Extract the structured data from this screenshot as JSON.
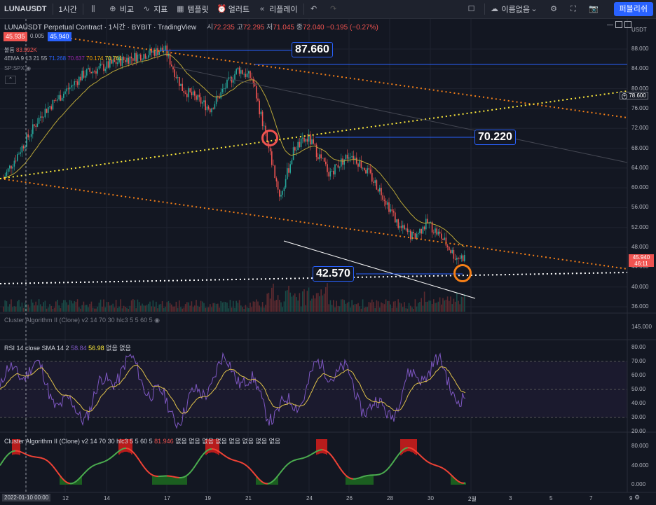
{
  "toolbar": {
    "symbol": "LUNAUSDT",
    "interval": "1시간",
    "compare": "비교",
    "indicators": "지표",
    "templates": "템플릿",
    "alert": "얼러트",
    "replay": "리플레이",
    "layout_name": "이름없음",
    "publish": "퍼블리쉬"
  },
  "legend": {
    "title": "LUNAUSDT Perpetual Contract · 1시간 · BYBIT · TradingView",
    "o_label": "시",
    "o": "72.235",
    "h_label": "고",
    "h": "72.295",
    "l_label": "저",
    "l": "71.045",
    "c_label": "종",
    "c": "72.040",
    "change": "−0.195 (−0.27%)",
    "bid": "45.935",
    "spread": "0.005",
    "ask": "45.940",
    "volume_label": "볼륨",
    "volume_value": "83.992K",
    "ema_label": "4EMA 9 13 21 55",
    "ema_values": [
      "71.268",
      "70.637",
      "70.174",
      "70.761"
    ],
    "sp_label": "SP:SPX"
  },
  "annotations": {
    "top": "87.660",
    "mid": "70.220",
    "low": "42.570"
  },
  "price_axis": {
    "currency": "USDT",
    "ticks": [
      "88.000",
      "84.000",
      "80.000",
      "76.000",
      "72.000",
      "68.000",
      "64.000",
      "60.000",
      "56.000",
      "52.000",
      "48.000",
      "44.000",
      "40.000",
      "36.000"
    ],
    "marker": "78.600",
    "current": "45.940",
    "countdown": "46:11",
    "cluster_tick": "145.000"
  },
  "rsi": {
    "label": "RSI 14 close SMA 14 2",
    "v1": "58.84",
    "v2": "56.98",
    "extra": "없음 없음",
    "ticks": [
      "80.00",
      "70.00",
      "60.00",
      "50.00",
      "40.00",
      "30.00",
      "20.00"
    ]
  },
  "cluster1": {
    "label": "Cluster Algorithm II (Clone) v2 14 70 30 hlc3 5 5 60 5"
  },
  "cluster2": {
    "label": "Cluster Algorithm II (Clone) v2 14 70 30 hlc3 5 5 60 5",
    "value": "81.946",
    "extra": "없음 없음 없음 없음 없음 없음 없음 없음",
    "ticks": [
      "80.000",
      "40.000",
      "0.000"
    ]
  },
  "time_axis": {
    "start": "2022-01-10",
    "start_time": "00:00",
    "labels": [
      "12",
      "14",
      "17",
      "19",
      "21",
      "24",
      "26",
      "28",
      "30",
      "2월",
      "3",
      "5",
      "7",
      "9"
    ]
  },
  "colors": {
    "up": "#26a69a",
    "down": "#ef5350",
    "accent": "#2962ff",
    "orange": "#f57f17",
    "yellow": "#ffeb3b",
    "white": "#ffffff"
  }
}
